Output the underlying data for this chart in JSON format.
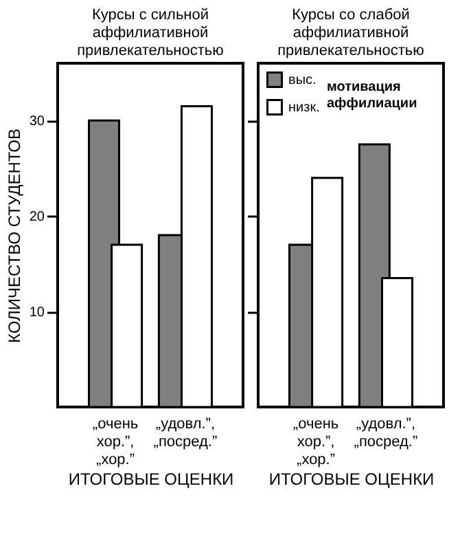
{
  "chart_data": [
    {
      "type": "bar",
      "title": "Курсы с сильной\nаффилиативной\nпривлекательностью",
      "xlabel": "ИТОГОВЫЕ ОЦЕНКИ",
      "ylabel": "КОЛИЧЕСТВО СТУДЕНТОВ",
      "categories": [
        "„очень\nхор.”,\n„хор.”",
        "„удовл.”,\n„посред.”"
      ],
      "series": [
        {
          "color": "#808080",
          "values": [
            30,
            18
          ]
        },
        {
          "color": "#ffffff",
          "values": [
            17,
            31.5
          ]
        }
      ],
      "ylim": [
        0,
        36
      ],
      "yticks": [
        10,
        20,
        30
      ],
      "grid": false,
      "legend": false
    },
    {
      "type": "bar",
      "title": "Курсы со слабой\nаффилиативной\nпривлекательностью",
      "xlabel": "ИТОГОВЫЕ ОЦЕНКИ",
      "categories": [
        "„очень\nхор.”,\n„хор.”",
        "„удовл.”,\n„посред.”"
      ],
      "series": [
        {
          "name": "выс.",
          "color": "#808080",
          "values": [
            17,
            27.5
          ]
        },
        {
          "name": "низк.",
          "color": "#ffffff",
          "values": [
            24,
            13.5
          ]
        }
      ],
      "ylim": [
        0,
        36
      ],
      "yticks": [
        10,
        20,
        30
      ],
      "grid": false,
      "legend": "top left",
      "legend_title": "мотивация\nаффилиации",
      "tick_labels": "x"
    }
  ]
}
